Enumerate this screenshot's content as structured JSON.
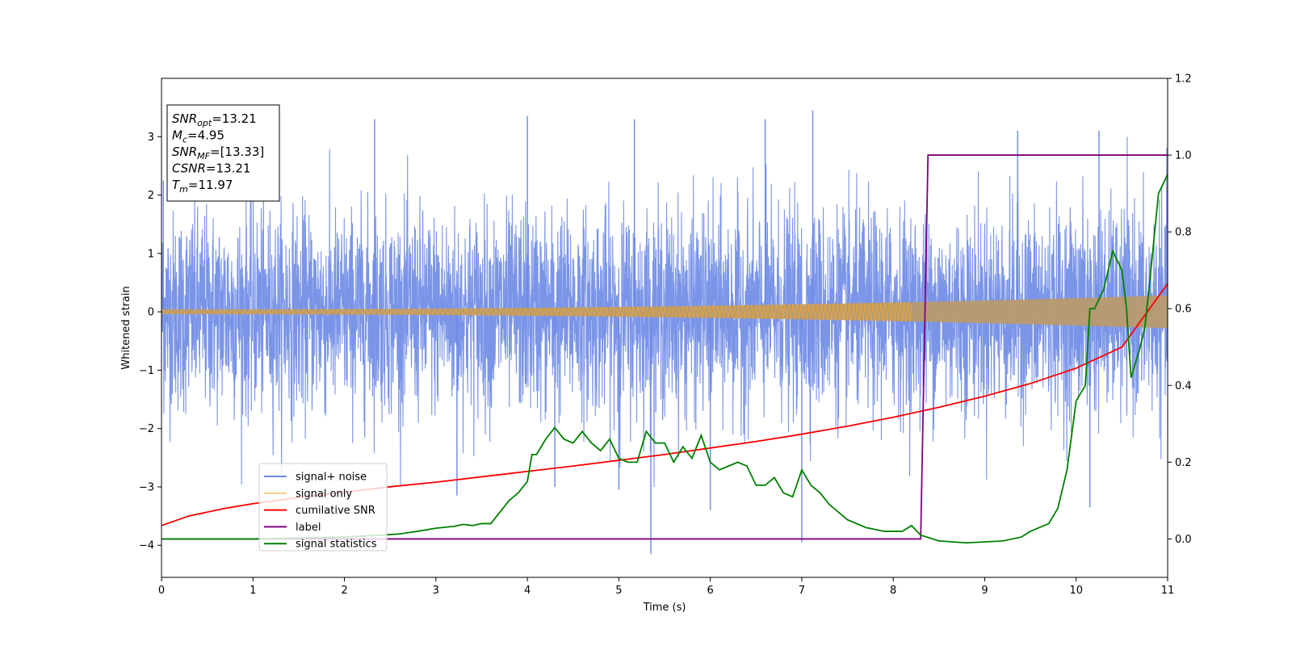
{
  "chart_data": {
    "type": "line",
    "xlabel": "Time (s)",
    "ylabel": "Whitened strain",
    "xlim": [
      0,
      11
    ],
    "ylim_left": [
      -4.55,
      4.0
    ],
    "ylim_right": [
      -0.1,
      1.2
    ],
    "x_ticks": [
      0,
      1,
      2,
      3,
      4,
      5,
      6,
      7,
      8,
      9,
      10,
      11
    ],
    "y_ticks_left": [
      -4,
      -3,
      -2,
      -1,
      0,
      1,
      2,
      3
    ],
    "y_ticks_right": [
      0.0,
      0.2,
      0.4,
      0.6,
      0.8,
      1.0,
      1.2
    ],
    "grid": false,
    "legend_position": "lower-left",
    "info_box": {
      "lines": [
        {
          "italic": "SNR",
          "sub": "opt",
          "rest": "=13.21"
        },
        {
          "italic": "M",
          "sub": "c",
          "rest": "=4.95"
        },
        {
          "italic": "SNR",
          "sub": "MF",
          "rest": "=[13.33]"
        },
        {
          "italic": "CSNR",
          "sub": "",
          "rest": "=13.21"
        },
        {
          "italic": "T",
          "sub": "m",
          "rest": "=11.97"
        }
      ]
    },
    "series": [
      {
        "name": "signal+ noise",
        "axis": "left",
        "color": "#6b88e6",
        "description_kind": "noise_band",
        "sigma": 0.85,
        "extreme_peaks": [
          [
            0.02,
            2.25
          ],
          [
            2.33,
            3.3
          ],
          [
            4.0,
            3.35
          ],
          [
            5.17,
            3.3
          ],
          [
            6.6,
            3.3
          ],
          [
            7.12,
            3.45
          ],
          [
            9.36,
            3.1
          ],
          [
            10.25,
            3.1
          ],
          [
            5.35,
            -4.15
          ],
          [
            7.0,
            -3.95
          ],
          [
            10.15,
            -3.35
          ],
          [
            4.3,
            -3.0
          ],
          [
            5.0,
            -3.05
          ],
          [
            6.0,
            -3.4
          ],
          [
            3.23,
            -3.15
          ]
        ]
      },
      {
        "name": "signal only",
        "axis": "left",
        "color": "#f0a830",
        "description_kind": "chirp_envelope",
        "amplitude_start": 0.04,
        "amplitude_end": 0.28
      },
      {
        "name": "cumilative SNR",
        "axis": "right",
        "color": "#ff0000",
        "x": [
          0.0,
          0.3,
          0.7,
          1.0,
          1.5,
          2.0,
          2.5,
          3.0,
          3.5,
          4.0,
          4.5,
          5.0,
          5.5,
          6.0,
          6.5,
          7.0,
          7.5,
          8.0,
          8.5,
          9.0,
          9.5,
          10.0,
          10.5,
          11.0
        ],
        "y": [
          0.035,
          0.06,
          0.08,
          0.092,
          0.108,
          0.122,
          0.136,
          0.148,
          0.162,
          0.176,
          0.19,
          0.205,
          0.22,
          0.237,
          0.254,
          0.273,
          0.294,
          0.317,
          0.343,
          0.372,
          0.405,
          0.445,
          0.5,
          0.665
        ]
      },
      {
        "name": "label",
        "axis": "right",
        "color": "#800080",
        "x": [
          0.0,
          8.3,
          8.38,
          11.0
        ],
        "y": [
          0.0,
          0.0,
          1.0,
          1.0
        ]
      },
      {
        "name": "signal statistics",
        "axis": "right",
        "color": "#008000",
        "x": [
          0.0,
          1.0,
          2.0,
          2.4,
          2.6,
          2.8,
          3.0,
          3.2,
          3.3,
          3.4,
          3.5,
          3.6,
          3.7,
          3.8,
          3.9,
          4.0,
          4.05,
          4.1,
          4.2,
          4.3,
          4.4,
          4.5,
          4.6,
          4.7,
          4.8,
          4.9,
          5.0,
          5.1,
          5.2,
          5.3,
          5.4,
          5.5,
          5.6,
          5.7,
          5.8,
          5.9,
          6.0,
          6.1,
          6.2,
          6.3,
          6.4,
          6.5,
          6.6,
          6.7,
          6.8,
          6.9,
          7.0,
          7.1,
          7.2,
          7.3,
          7.4,
          7.5,
          7.7,
          7.9,
          8.1,
          8.2,
          8.3,
          8.5,
          8.8,
          9.2,
          9.4,
          9.5,
          9.6,
          9.7,
          9.8,
          9.9,
          10.0,
          10.1,
          10.15,
          10.2,
          10.3,
          10.4,
          10.5,
          10.55,
          10.6,
          10.7,
          10.75,
          10.8,
          10.9,
          11.0
        ],
        "y": [
          0.0,
          0.0,
          0.005,
          0.01,
          0.013,
          0.02,
          0.028,
          0.033,
          0.038,
          0.035,
          0.04,
          0.04,
          0.07,
          0.1,
          0.12,
          0.15,
          0.22,
          0.22,
          0.26,
          0.29,
          0.26,
          0.25,
          0.28,
          0.25,
          0.23,
          0.26,
          0.21,
          0.2,
          0.2,
          0.28,
          0.25,
          0.25,
          0.2,
          0.24,
          0.21,
          0.27,
          0.2,
          0.18,
          0.19,
          0.2,
          0.19,
          0.14,
          0.14,
          0.16,
          0.12,
          0.11,
          0.18,
          0.14,
          0.12,
          0.09,
          0.07,
          0.05,
          0.03,
          0.02,
          0.02,
          0.035,
          0.01,
          -0.005,
          -0.01,
          -0.005,
          0.005,
          0.02,
          0.03,
          0.04,
          0.08,
          0.18,
          0.36,
          0.4,
          0.6,
          0.6,
          0.65,
          0.75,
          0.7,
          0.6,
          0.42,
          0.5,
          0.55,
          0.66,
          0.9,
          0.95
        ]
      }
    ]
  },
  "colors": {
    "signal_noise": "#6b88e6",
    "signal_only": "#f0a830",
    "cumulative_snr": "#ff0000",
    "label": "#800080",
    "signal_statistics": "#008000"
  }
}
